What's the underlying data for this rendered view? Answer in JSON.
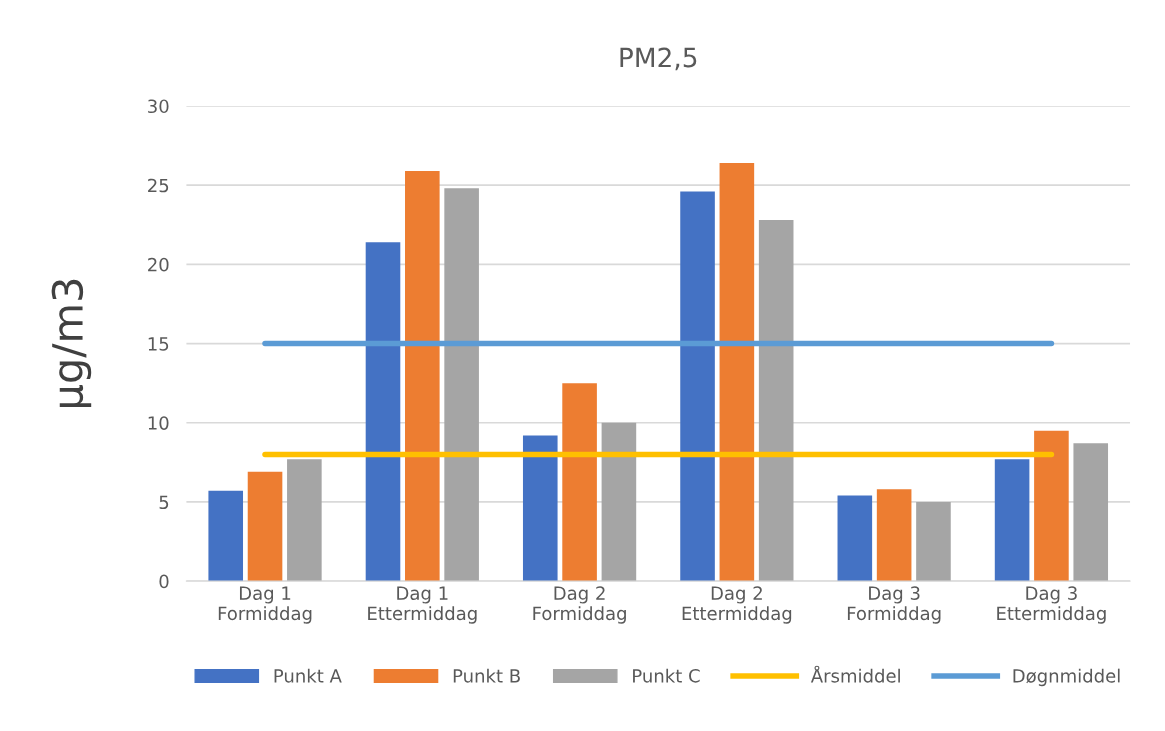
{
  "chart_data": {
    "type": "bar",
    "title": "PM2,5",
    "ylabel": "µg/m3",
    "categories": [
      "Dag 1\nFormiddag",
      "Dag 1\nEttermiddag",
      "Dag 2\nFormiddag",
      "Dag 2\nEttermiddag",
      "Dag 3\nFormiddag",
      "Dag 3\nEttermiddag"
    ],
    "series": [
      {
        "name": "Punkt A",
        "color": "#4472c4",
        "values": [
          5.7,
          21.4,
          9.2,
          24.6,
          5.4,
          7.7
        ]
      },
      {
        "name": "Punkt B",
        "color": "#ed7d31",
        "values": [
          6.9,
          25.9,
          12.5,
          26.4,
          5.8,
          9.5
        ]
      },
      {
        "name": "Punkt C",
        "color": "#a5a5a5",
        "values": [
          7.7,
          24.8,
          10.0,
          22.8,
          5.0,
          8.7
        ]
      },
      {
        "name": "Årsmiddel",
        "type": "line",
        "color": "#ffc000",
        "values": [
          8,
          8,
          8,
          8,
          8,
          8
        ]
      },
      {
        "name": "Døgnmiddel",
        "type": "line",
        "color": "#5b9bd5",
        "values": [
          15,
          15,
          15,
          15,
          15,
          15
        ]
      }
    ],
    "ylim": [
      0,
      30
    ],
    "yticks": [
      0,
      5,
      10,
      15,
      20,
      25,
      30
    ],
    "grid": "y",
    "legend": "bottom",
    "marker": "none"
  }
}
